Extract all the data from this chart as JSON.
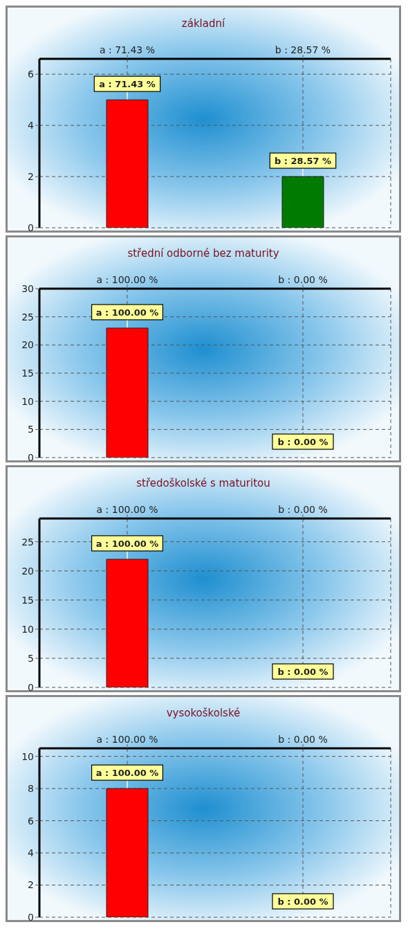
{
  "chart_data": [
    {
      "type": "bar",
      "title": "základní",
      "categories": [
        "a : 71.43 %",
        "b : 28.57 %"
      ],
      "values": [
        5,
        2
      ],
      "colors": [
        "#ff0000",
        "#007a00"
      ],
      "ylim": [
        0,
        6.6
      ],
      "yticks": [
        0,
        2,
        4,
        6
      ],
      "grid": true,
      "annotations": [
        {
          "text": "a : 71.43 %",
          "x": "a : 71.43 %",
          "y": 5
        },
        {
          "text": "b : 28.57 %",
          "x": "b : 28.57 %",
          "y": 2
        }
      ]
    },
    {
      "type": "bar",
      "title": "střední odborné bez maturity",
      "categories": [
        "a : 100.00 %",
        "b : 0.00 %"
      ],
      "values": [
        23,
        0
      ],
      "colors": [
        "#ff0000",
        "#007a00"
      ],
      "ylim": [
        0,
        30
      ],
      "yticks": [
        0,
        5,
        10,
        15,
        20,
        25,
        30
      ],
      "grid": true,
      "annotations": [
        {
          "text": "a : 100.00 %",
          "x": "a : 100.00 %",
          "y": 23
        },
        {
          "text": "b : 0.00 %",
          "x": "b : 0.00 %",
          "y": 0
        }
      ]
    },
    {
      "type": "bar",
      "title": "středoškolské s maturitou",
      "categories": [
        "a : 100.00 %",
        "b : 0.00 %"
      ],
      "values": [
        22,
        0
      ],
      "colors": [
        "#ff0000",
        "#007a00"
      ],
      "ylim": [
        0,
        29
      ],
      "yticks": [
        0,
        5,
        10,
        15,
        20,
        25
      ],
      "grid": true,
      "annotations": [
        {
          "text": "a : 100.00 %",
          "x": "a : 100.00 %",
          "y": 22
        },
        {
          "text": "b : 0.00 %",
          "x": "b : 0.00 %",
          "y": 0
        }
      ]
    },
    {
      "type": "bar",
      "title": "vysokoškolské",
      "categories": [
        "a : 100.00 %",
        "b : 0.00 %"
      ],
      "values": [
        8,
        0
      ],
      "colors": [
        "#ff0000",
        "#007a00"
      ],
      "ylim": [
        0,
        10.5
      ],
      "yticks": [
        0,
        2,
        4,
        6,
        8,
        10
      ],
      "grid": true,
      "annotations": [
        {
          "text": "a : 100.00 %",
          "x": "a : 100.00 %",
          "y": 8
        },
        {
          "text": "b : 0.00 %",
          "x": "b : 0.00 %",
          "y": 0
        }
      ]
    }
  ]
}
